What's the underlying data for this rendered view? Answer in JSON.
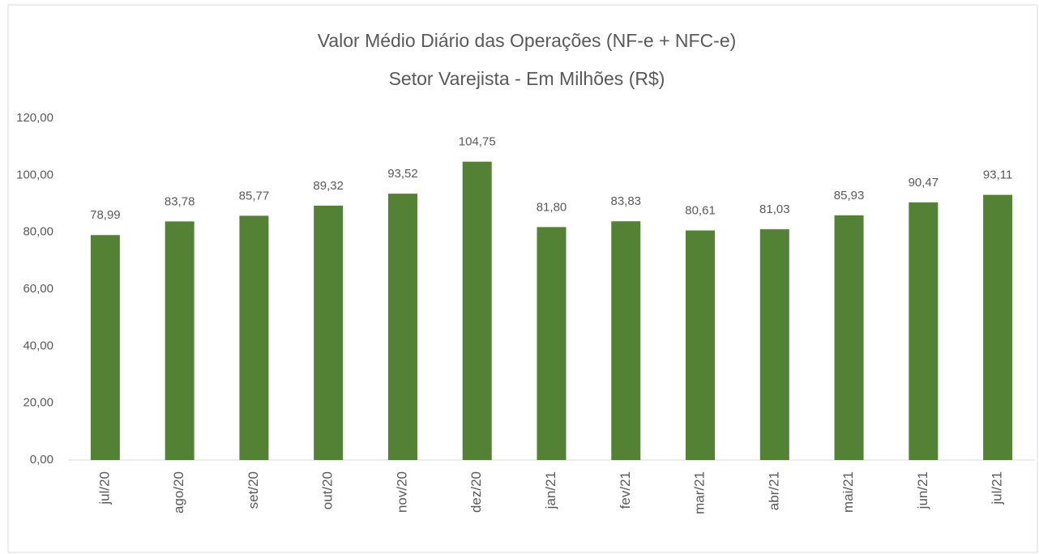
{
  "chart_data": {
    "type": "bar",
    "title": "Valor Médio Diário das Operações (NF-e + NFC-e)",
    "subtitle": "Setor Varejista - Em Milhões (R$)",
    "categories": [
      "jul/20",
      "ago/20",
      "set/20",
      "out/20",
      "nov/20",
      "dez/20",
      "jan/21",
      "fev/21",
      "mar/21",
      "abr/21",
      "mai/21",
      "jun/21",
      "jul/21"
    ],
    "values": [
      78.99,
      83.78,
      85.77,
      89.32,
      93.52,
      104.75,
      81.8,
      83.83,
      80.61,
      81.03,
      85.93,
      90.47,
      93.11
    ],
    "value_labels": [
      "78,99",
      "83,78",
      "85,77",
      "89,32",
      "93,52",
      "104,75",
      "81,80",
      "83,83",
      "80,61",
      "81,03",
      "85,93",
      "90,47",
      "93,11"
    ],
    "color": "#548235",
    "ylim": [
      0,
      120
    ],
    "yticks": [
      {
        "value": 0,
        "label": "0,00"
      },
      {
        "value": 20,
        "label": "20,00"
      },
      {
        "value": 40,
        "label": "40,00"
      },
      {
        "value": 60,
        "label": "60,00"
      },
      {
        "value": 80,
        "label": "80,00"
      },
      {
        "value": 100,
        "label": "100,00"
      },
      {
        "value": 120,
        "label": "120,00"
      }
    ],
    "grid": false
  }
}
